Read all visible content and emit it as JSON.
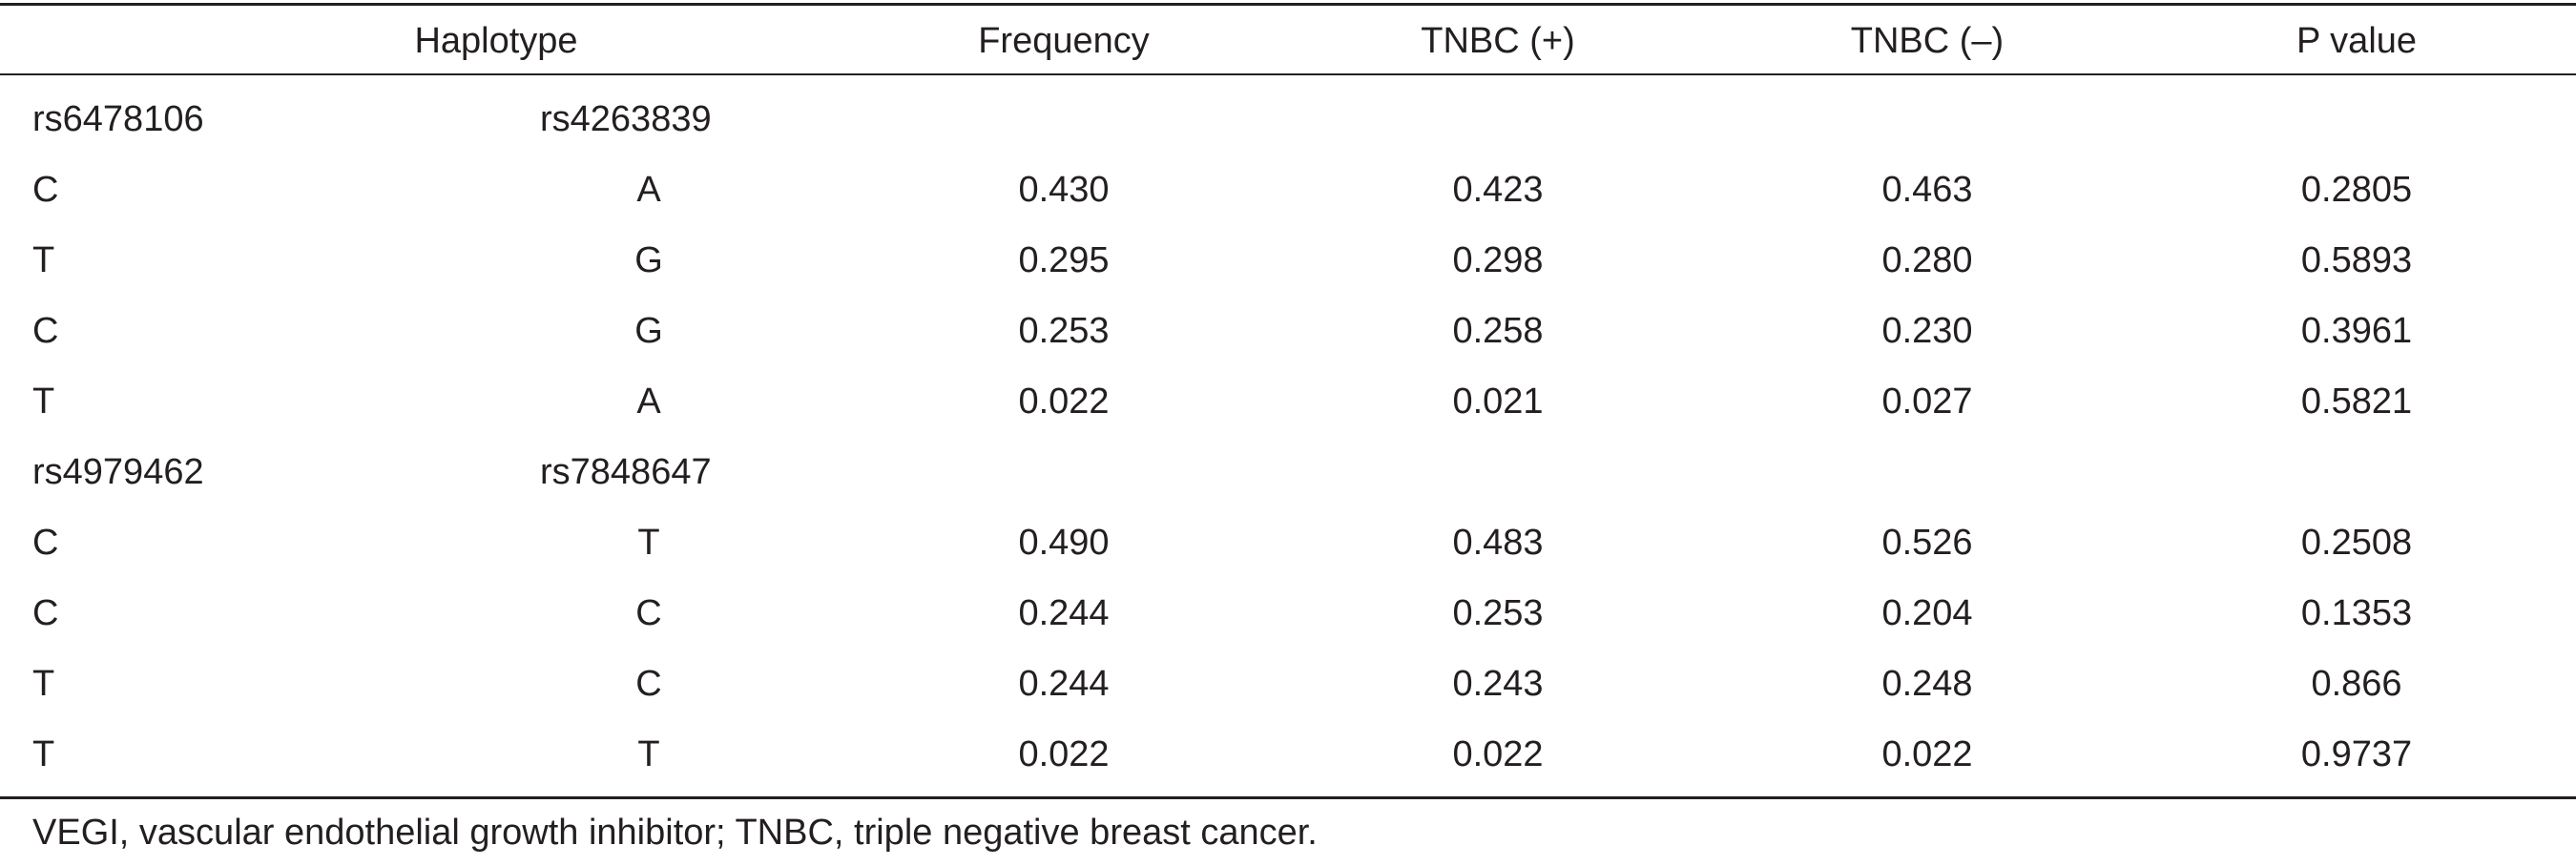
{
  "header": {
    "haplotype": "Haplotype",
    "frequency": "Frequency",
    "tnbc_pos": "TNBC (+)",
    "tnbc_neg": "TNBC (–)",
    "p_value": "P value"
  },
  "groups": [
    {
      "snp1": "rs6478106",
      "snp2": "rs4263839",
      "rows": [
        {
          "a1": "C",
          "a2": "A",
          "freq": "0.430",
          "pos": "0.423",
          "neg": "0.463",
          "p": "0.2805"
        },
        {
          "a1": "T",
          "a2": "G",
          "freq": "0.295",
          "pos": "0.298",
          "neg": "0.280",
          "p": "0.5893"
        },
        {
          "a1": "C",
          "a2": "G",
          "freq": "0.253",
          "pos": "0.258",
          "neg": "0.230",
          "p": "0.3961"
        },
        {
          "a1": "T",
          "a2": "A",
          "freq": "0.022",
          "pos": "0.021",
          "neg": "0.027",
          "p": "0.5821"
        }
      ]
    },
    {
      "snp1": "rs4979462",
      "snp2": "rs7848647",
      "rows": [
        {
          "a1": "C",
          "a2": "T",
          "freq": "0.490",
          "pos": "0.483",
          "neg": "0.526",
          "p": "0.2508"
        },
        {
          "a1": "C",
          "a2": "C",
          "freq": "0.244",
          "pos": "0.253",
          "neg": "0.204",
          "p": "0.1353"
        },
        {
          "a1": "T",
          "a2": "C",
          "freq": "0.244",
          "pos": "0.243",
          "neg": "0.248",
          "p": "0.866"
        },
        {
          "a1": "T",
          "a2": "T",
          "freq": "0.022",
          "pos": "0.022",
          "neg": "0.022",
          "p": "0.9737"
        }
      ]
    }
  ],
  "footnote": "VEGI, vascular endothelial growth inhibitor; TNBC, triple negative breast cancer."
}
